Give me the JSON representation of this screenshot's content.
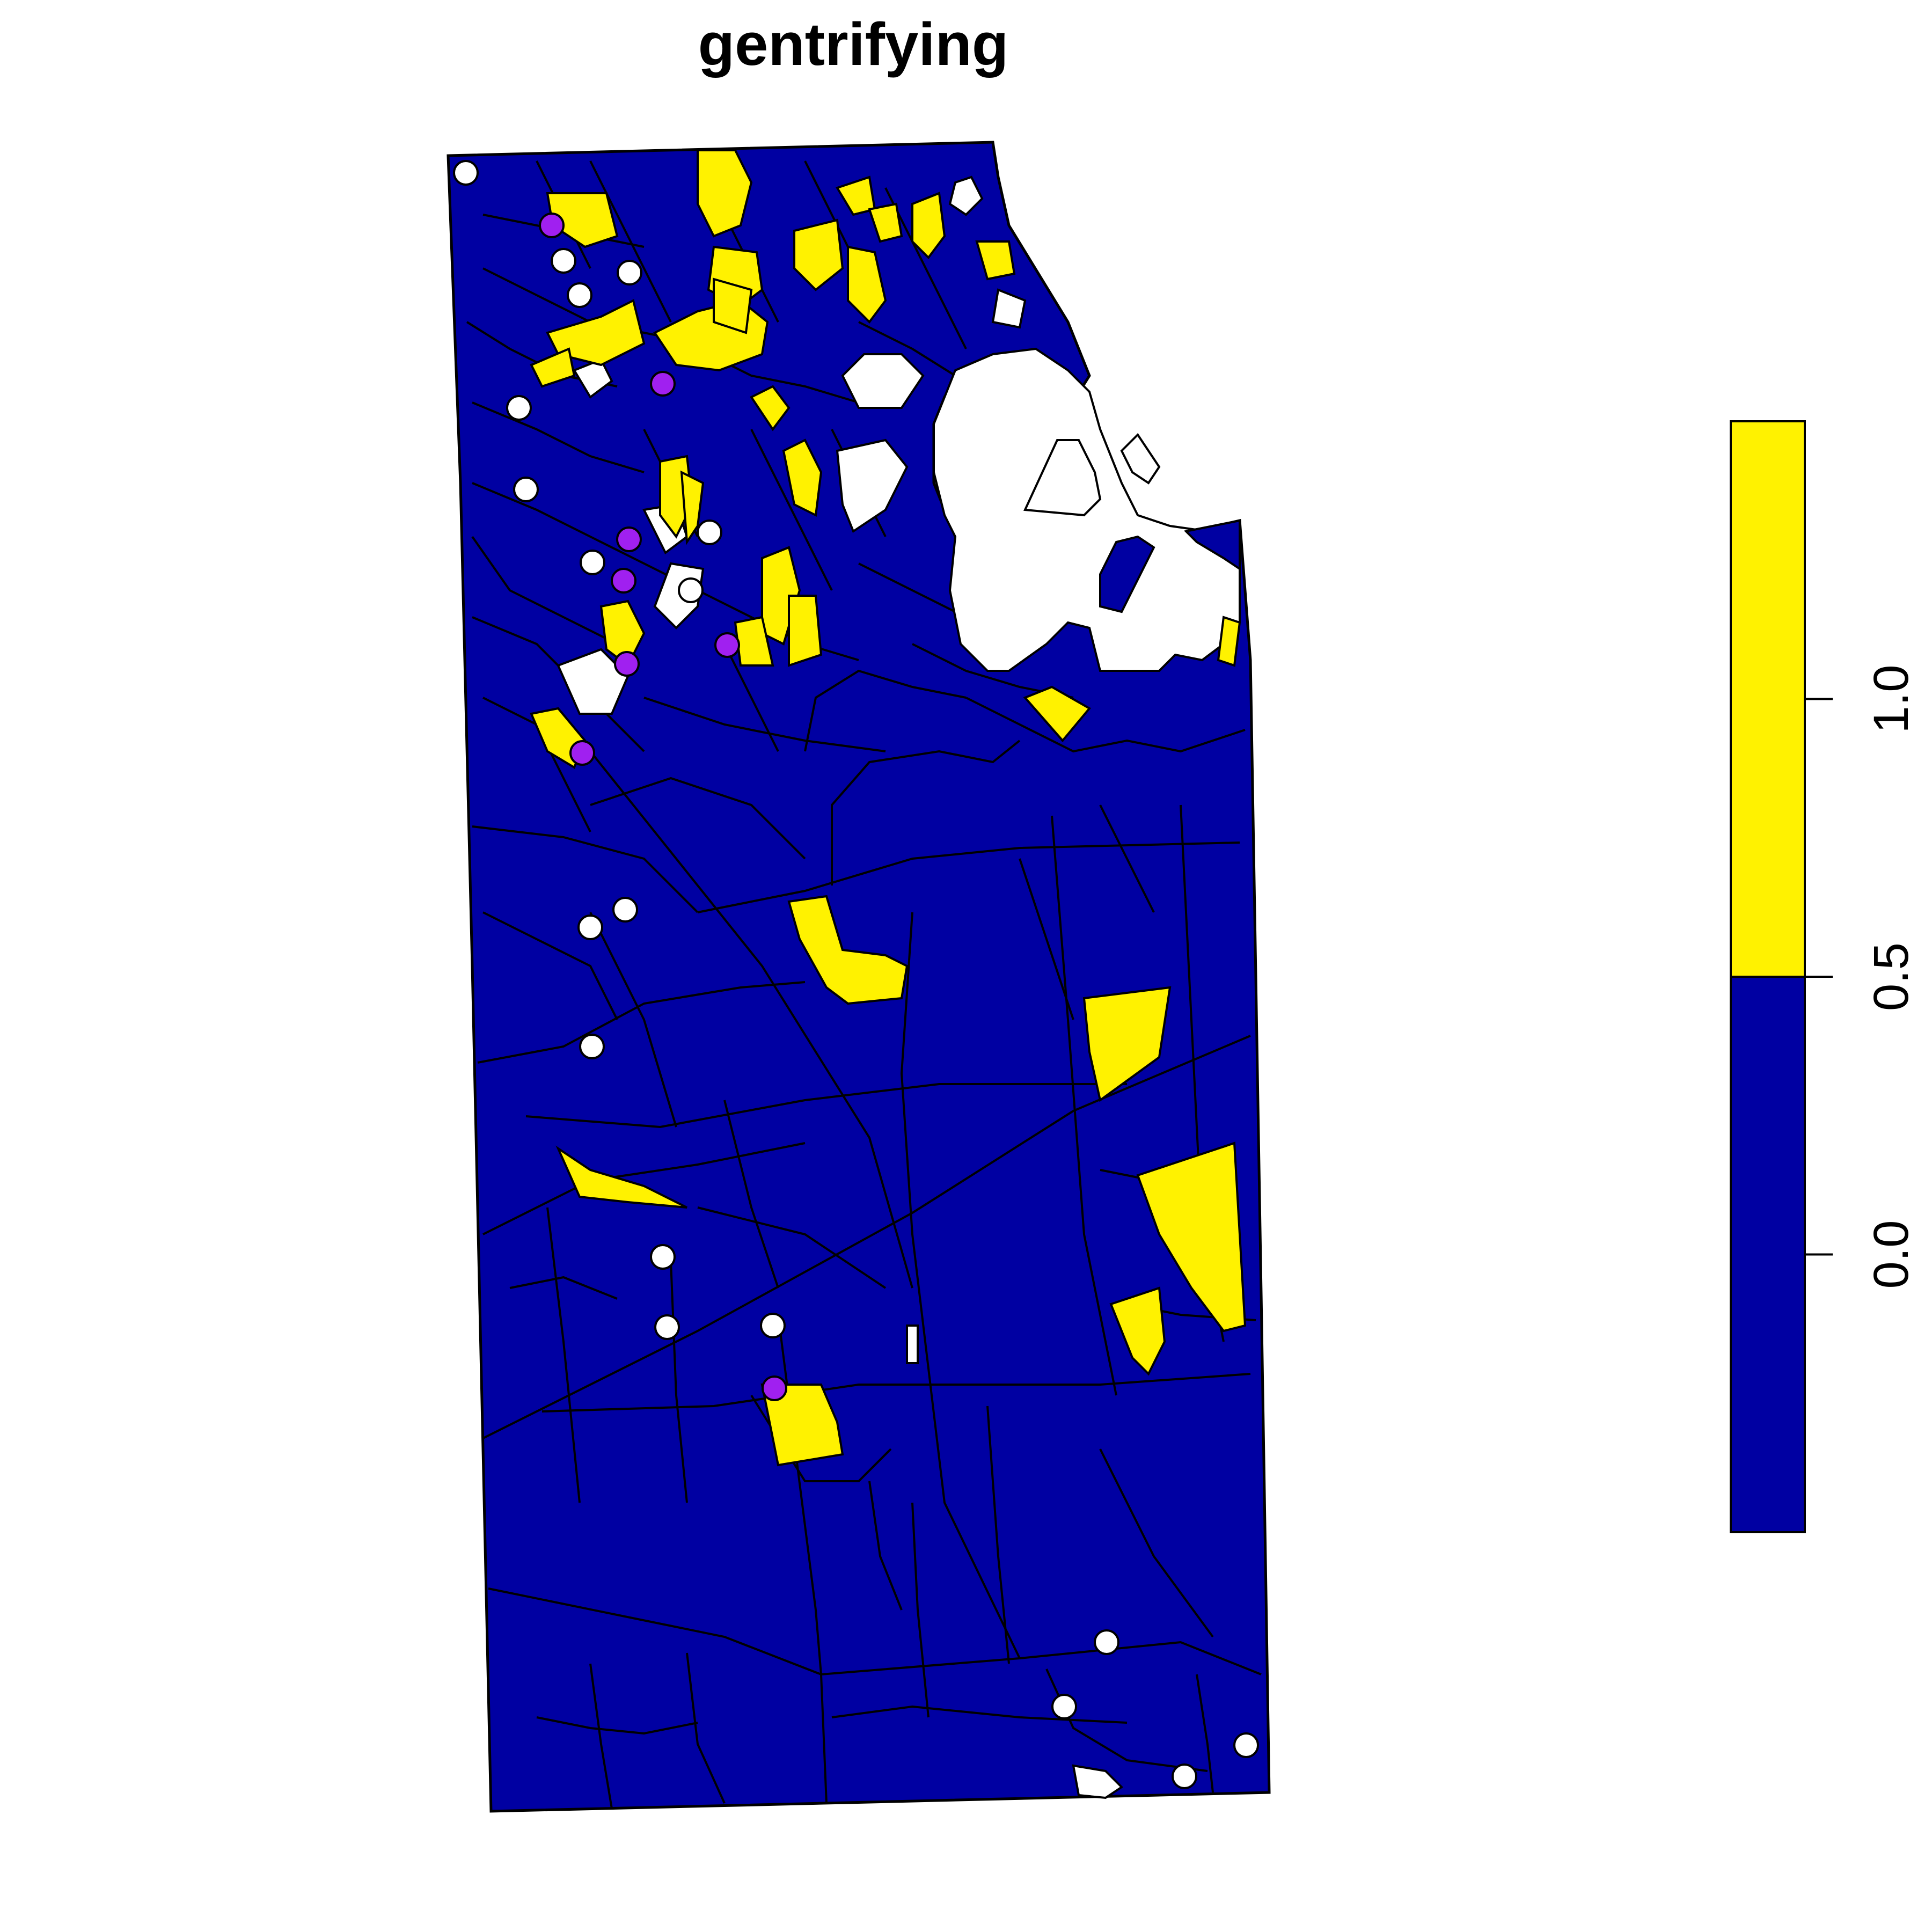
{
  "title": "gentrifying",
  "colors": {
    "class_0": "#0000A2",
    "class_1": "#FFF200",
    "no_data": "#FFFFFF",
    "point_gentrifying": "#A020F0",
    "point_other": "#FFFFFF",
    "border": "#000000"
  },
  "legend": {
    "min": -0.5,
    "max": 1.5,
    "breaks": [
      -0.5,
      0.5,
      1.5
    ],
    "ticks": [
      {
        "value": 0.0,
        "label": "0.0"
      },
      {
        "value": 0.5,
        "label": "0.5"
      },
      {
        "value": 1.0,
        "label": "1.0"
      }
    ]
  }
}
